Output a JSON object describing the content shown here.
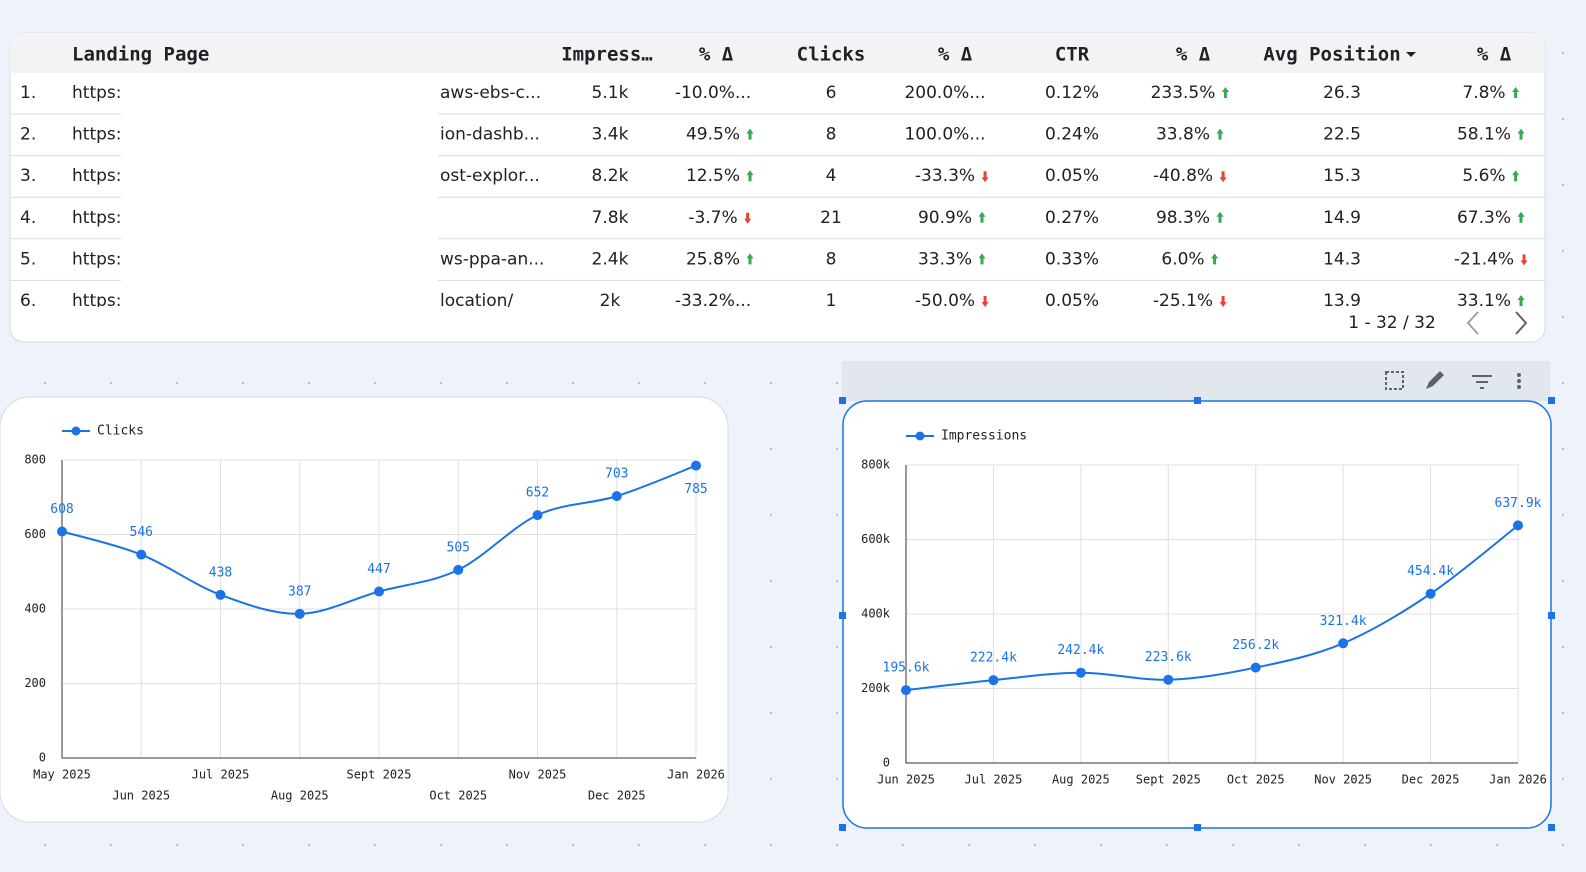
{
  "table": {
    "columns": [
      "Landing Page",
      "Impress…",
      "% Δ",
      "Clicks",
      "% Δ",
      "CTR",
      "% Δ",
      "Avg Position",
      "% Δ"
    ],
    "rows": [
      [
        "1.",
        "https:",
        "aws-ebs-c...",
        "5.1k",
        "-10.0%...",
        "6",
        "200.0%...",
        "0.12%",
        "233.5%",
        "26.3",
        "7.8%"
      ],
      [
        "2.",
        "https:",
        "ion-dashb...",
        "3.4k",
        "49.5%",
        "8",
        "100.0%...",
        "0.24%",
        "33.8%",
        "22.5",
        "58.1%"
      ],
      [
        "3.",
        "https:",
        "ost-explor...",
        "8.2k",
        "12.5%",
        "4",
        "-33.3%",
        "0.05%",
        "-40.8%",
        "15.3",
        "5.6%"
      ],
      [
        "4.",
        "https:",
        null,
        "7.8k",
        "-3.7%",
        "21",
        "90.9%",
        "0.27%",
        "98.3%",
        "14.9",
        "67.3%"
      ],
      [
        "5.",
        "https:",
        "ws-ppa-an...",
        "2.4k",
        "25.8%",
        "8",
        "33.3%",
        "0.33%",
        "6.0%",
        "14.3",
        "-21.4%"
      ],
      [
        "6.",
        "https:",
        "location/",
        "2k",
        "-33.2%...",
        "1",
        "-50.0%",
        "0.05%",
        "-25.1%",
        "13.9",
        "33.1%"
      ]
    ],
    "pagination": "1 - 32 / 32"
  },
  "chart_data": [
    {
      "type": "line",
      "categories": [
        "May 2025",
        "Jun 2025",
        "Jul 2025",
        "Aug 2025",
        "Sept 2025",
        "Oct 2025",
        "Nov 2025",
        "Dec 2025",
        "Jan 2026"
      ],
      "series": [
        {
          "name": "Clicks",
          "color": "#1a73e8",
          "values": [
            608,
            546,
            438,
            387,
            447,
            505,
            652,
            703,
            785
          ]
        }
      ],
      "ylim": [
        0,
        800
      ],
      "yticks": [
        0,
        200,
        400,
        600,
        800
      ],
      "grid": true
    },
    {
      "type": "line",
      "categories": [
        "Jun 2025",
        "Jul 2025",
        "Aug 2025",
        "Sept 2025",
        "Oct 2025",
        "Nov 2025",
        "Dec 2025",
        "Jan 2026"
      ],
      "series": [
        {
          "name": "Impressions",
          "color": "#1a73e8",
          "values": [
            195600,
            222400,
            242400,
            223600,
            256200,
            321400,
            454400,
            637900
          ],
          "value_labels": [
            "195.6k",
            "222.4k",
            "242.4k",
            "223.6k",
            "256.2k",
            "321.4k",
            "454.4k",
            "637.9k"
          ]
        }
      ],
      "ylim": [
        0,
        800000
      ],
      "yticks": [
        0,
        {
          "value": 200000,
          "label": "200k"
        },
        {
          "value": 400000,
          "label": "400k"
        },
        {
          "value": 600000,
          "label": "600k"
        },
        {
          "value": 800000,
          "label": "800k"
        }
      ],
      "grid": true
    }
  ]
}
